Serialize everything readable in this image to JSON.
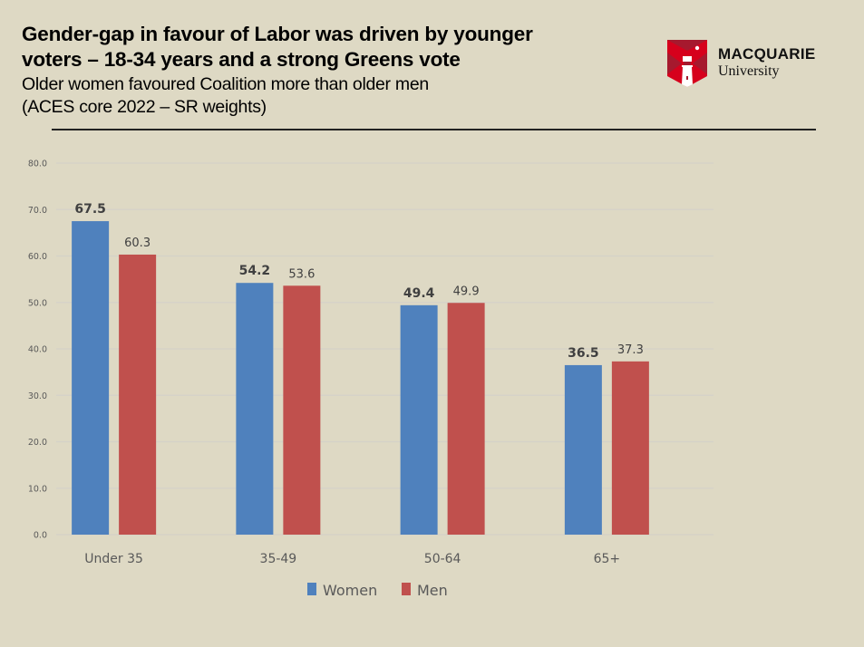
{
  "header": {
    "title_line1": "Gender-gap in favour of Labor was driven by younger",
    "title_line2": "voters – 18-34 years and a strong Greens vote",
    "subtitle_line1": "Older women favoured Coalition more than older men",
    "subtitle_line2": "(ACES core 2022 – SR weights)"
  },
  "logo": {
    "name": "MACQUARIE",
    "sub": "University",
    "colors": {
      "red": "#d6001c",
      "dark_red": "#a6192e",
      "white": "#ffffff"
    }
  },
  "chart_data": {
    "type": "bar",
    "title": "",
    "xlabel": "",
    "ylabel": "",
    "ylim": [
      0,
      80
    ],
    "yticks": [
      0,
      10,
      20,
      30,
      40,
      50,
      60,
      70,
      80
    ],
    "ytick_labels": [
      "0.0",
      "10.0",
      "20.0",
      "30.0",
      "40.0",
      "50.0",
      "60.0",
      "70.0",
      "80.0"
    ],
    "grid": true,
    "categories": [
      "Under 35",
      "35-49",
      "50-64",
      "65+"
    ],
    "series": [
      {
        "name": "Women",
        "color": "#4f81bd",
        "values": [
          67.5,
          54.2,
          49.4,
          36.5
        ],
        "labels": [
          "67.5",
          "54.2",
          "49.4",
          "36.5"
        ],
        "label_bold": true
      },
      {
        "name": "Men",
        "color": "#c0504d",
        "values": [
          60.3,
          53.6,
          49.9,
          37.3
        ],
        "labels": [
          "60.3",
          "53.6",
          "49.9",
          "37.3"
        ],
        "label_bold": false
      }
    ],
    "legend": {
      "placement": "bottom-center",
      "entries": [
        "Women",
        "Men"
      ]
    }
  }
}
